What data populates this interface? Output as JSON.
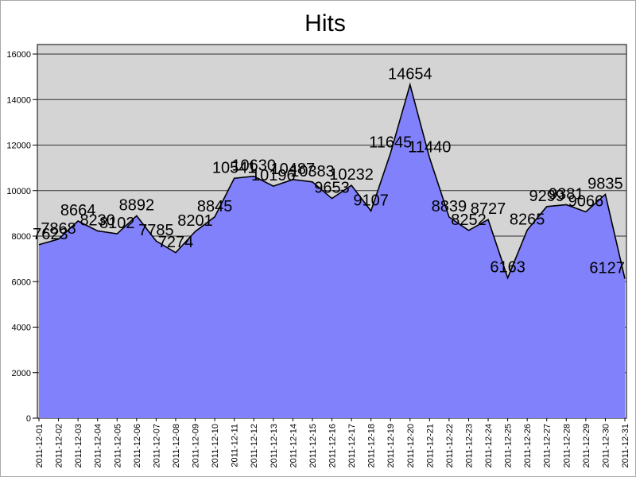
{
  "title": "Hits",
  "chart_data": {
    "type": "area",
    "title": "Hits",
    "x": [
      "2011-12-01",
      "2011-12-02",
      "2011-12-03",
      "2011-12-04",
      "2011-12-05",
      "2011-12-06",
      "2011-12-07",
      "2011-12-08",
      "2011-12-09",
      "2011-12-10",
      "2011-12-11",
      "2011-12-12",
      "2011-12-13",
      "2011-12-14",
      "2011-12-15",
      "2011-12-16",
      "2011-12-17",
      "2011-12-18",
      "2011-12-19",
      "2011-12-20",
      "2011-12-21",
      "2011-12-22",
      "2011-12-23",
      "2011-12-24",
      "2011-12-25",
      "2011-12-26",
      "2011-12-27",
      "2011-12-28",
      "2011-12-29",
      "2011-12-30",
      "2011-12-31"
    ],
    "series": [
      {
        "name": "Hits",
        "values": [
          7623,
          7868,
          8664,
          8230,
          8102,
          8892,
          7785,
          7274,
          8201,
          8845,
          10541,
          10630,
          10196,
          10487,
          10383,
          9653,
          10232,
          9107,
          11645,
          14654,
          11440,
          8839,
          8252,
          8727,
          6163,
          8265,
          9299,
          9381,
          9066,
          9835,
          6127
        ]
      }
    ],
    "data_labels_visible": true,
    "ylim": [
      0,
      16000
    ],
    "ytick_step": 2000,
    "ytick_labels": [
      "0",
      "2000",
      "4000",
      "6000",
      "8000",
      "10000",
      "12000",
      "14000",
      "16000"
    ],
    "x_label_rotation": -90,
    "grid": "horizontal",
    "legend_position": "none",
    "colors": {
      "area_fill": "#8181FB",
      "area_outline": "#000000",
      "plot_background": "#D4D4D4",
      "page_background": "#FFFFFF",
      "gridline": "#303030",
      "text": "#000000"
    }
  }
}
